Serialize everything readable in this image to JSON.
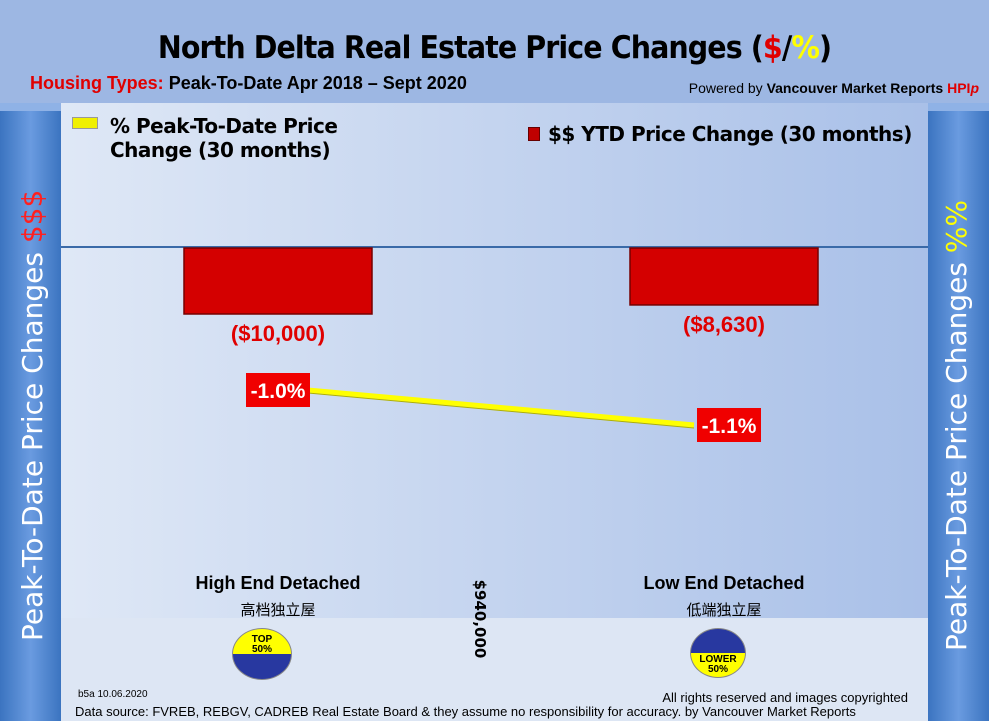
{
  "header": {
    "title_main": "North Delta Real Estate Price Changes (",
    "title_dollar": "$",
    "title_slash": "/",
    "title_pct": "%",
    "title_close": ")",
    "sub_label": "Housing Types:",
    "sub_text": "Peak-To-Date Apr 2018 – Sept 2020",
    "powered_prefix": "Powered by ",
    "powered_brand": "Vancouver Market Reports ",
    "powered_hpi": "HPI",
    "powered_p": "p"
  },
  "side": {
    "left_text": "Peak-To-Date Price Changes ",
    "left_accent": "$$$",
    "right_text": "Peak-To-Date  Price  Changes ",
    "right_accent": "%%"
  },
  "chart_data": {
    "type": "bar+line",
    "categories": [
      "High End Detached",
      "Low End Detached"
    ],
    "categories_cn": [
      "高档独立屋",
      "低端独立屋"
    ],
    "series": [
      {
        "name": "$$ YTD Price Change (30 months)",
        "type": "bar",
        "values": [
          -10000,
          -8630
        ],
        "labels": [
          "($10,000)",
          "($8,630)"
        ],
        "color": "#d40000"
      },
      {
        "name": "% Peak-To-Date Price Change (30 months)",
        "type": "line",
        "values": [
          -1.0,
          -1.1
        ],
        "labels": [
          "-1.0%",
          "-1.1%"
        ],
        "color": "#ffff00"
      }
    ],
    "legend": [
      "% Peak-To-Date Price",
      "Change (30 months)",
      "$$ YTD Price Change (30 months)"
    ],
    "divider_label": "$940,000",
    "badges": [
      {
        "line1": "TOP",
        "line2": "50%"
      },
      {
        "line1": "LOWER",
        "line2": "50%"
      }
    ]
  },
  "footer": {
    "code": "b5a 10.06.2020",
    "rights": "All rights reserved and  images copyrighted",
    "source": "Data source: FVREB, REBGV, CADREB Real Estate Board & they assume no responsibility for accuracy. by Vancouver Market Reports"
  }
}
